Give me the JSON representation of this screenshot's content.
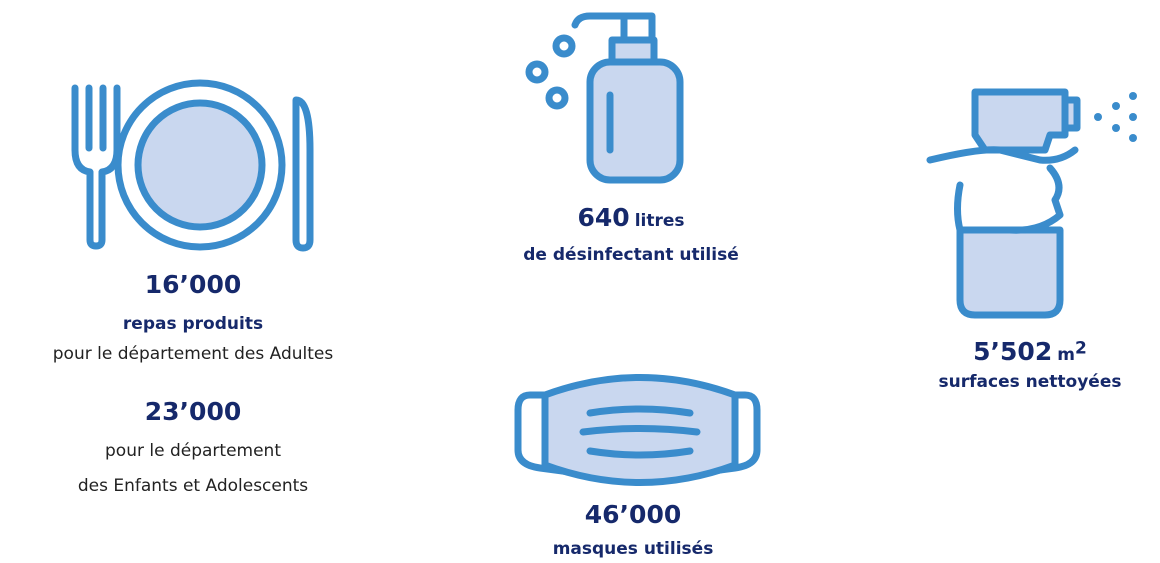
{
  "items": [
    {
      "number": "16’000",
      "label": "repas produits",
      "detail": "pour le département des Adultes",
      "number2": "23’000",
      "detail2_line1": "pour le département",
      "detail2_line2": "des Enfants et Adolescents"
    },
    {
      "number": "640",
      "unit": "litres",
      "label": "de désinfectant utilisé"
    },
    {
      "number": "46’000",
      "label": "masques utilisés"
    },
    {
      "number": "5’502",
      "unit": "m",
      "unit_sup": "2",
      "label": "surfaces nettoyées"
    }
  ]
}
